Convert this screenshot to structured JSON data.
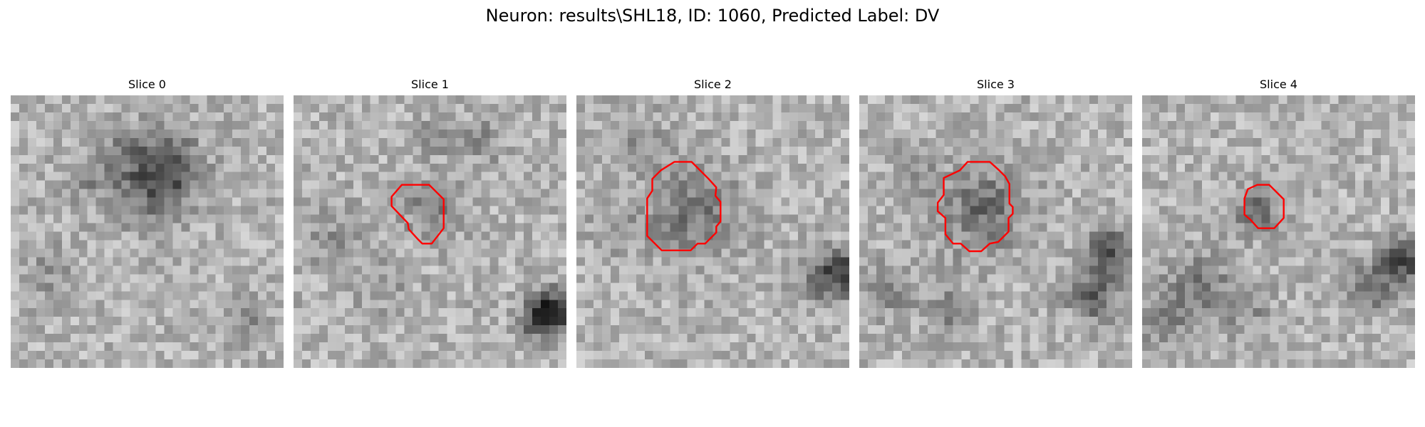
{
  "figure": {
    "title": "Neuron: results\\SHL18, ID: 1060, Predicted Label: DV"
  },
  "panels": [
    {
      "label": "Slice 0",
      "has_contour": false
    },
    {
      "label": "Slice 1",
      "has_contour": true
    },
    {
      "label": "Slice 2",
      "has_contour": true
    },
    {
      "label": "Slice 3",
      "has_contour": true
    },
    {
      "label": "Slice 4",
      "has_contour": true
    }
  ],
  "colors": {
    "contour": "#ff0000",
    "colormap": "grayscale"
  }
}
